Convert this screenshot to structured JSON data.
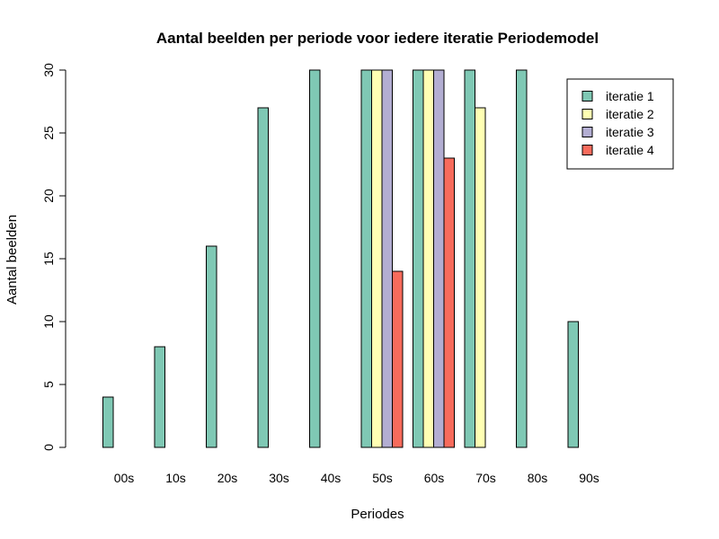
{
  "chart_data": {
    "type": "bar",
    "title": "Aantal beelden per periode voor iedere iteratie Periodemodel",
    "xlabel": "Periodes",
    "ylabel": "Aantal beelden",
    "categories": [
      "00s",
      "10s",
      "20s",
      "30s",
      "40s",
      "50s",
      "60s",
      "70s",
      "80s",
      "90s"
    ],
    "ylim": [
      0,
      30
    ],
    "yticks": [
      0,
      5,
      10,
      15,
      20,
      25,
      30
    ],
    "series": [
      {
        "name": "iteratie 1",
        "color": "#7fc8b4",
        "values": [
          4,
          8,
          16,
          27,
          30,
          30,
          30,
          30,
          30,
          10
        ]
      },
      {
        "name": "iteratie 2",
        "color": "#ffffb3",
        "values": [
          0,
          0,
          0,
          0,
          0,
          30,
          30,
          27,
          0,
          0
        ]
      },
      {
        "name": "iteratie 3",
        "color": "#b3aed2",
        "values": [
          0,
          0,
          0,
          0,
          0,
          30,
          30,
          0,
          0,
          0
        ]
      },
      {
        "name": "iteratie 4",
        "color": "#f76b5c",
        "values": [
          0,
          0,
          0,
          0,
          0,
          14,
          23,
          0,
          0,
          0
        ]
      }
    ],
    "legend_position": "top-right",
    "grid": false
  }
}
